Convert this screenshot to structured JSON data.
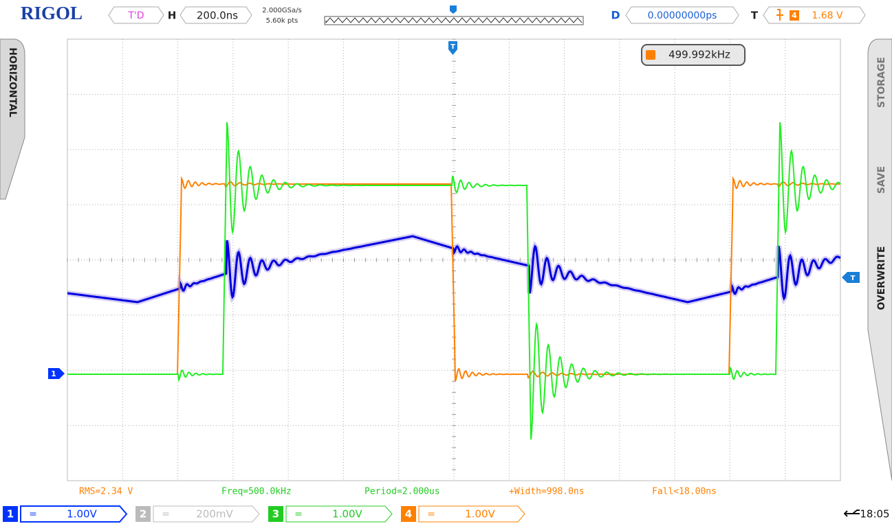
{
  "header": {
    "brand": "RIGOL",
    "trigger_status": "T'D",
    "horizontal_label": "H",
    "timebase": "200.0ns",
    "sample_rate": "2.000GSa/s",
    "memory_depth": "5.60k pts",
    "delay_label": "D",
    "delay": "0.00000000ps",
    "trigger_label": "T",
    "trigger_source": "4",
    "trigger_level": "1.68 V"
  },
  "screen": {
    "frequency_counter": "499.992kHz",
    "trigger_position_marker": "T",
    "channel_marker": "1",
    "trigger_level_marker": "T"
  },
  "side_menus": {
    "left": "HORIZONTAL",
    "right": [
      "STORAGE",
      "SAVE",
      "OVERWRITE"
    ]
  },
  "measurements": [
    {
      "text": "RMS=2.34 V",
      "color": "#ff8000"
    },
    {
      "text": "Freq=500.0kHz",
      "color": "#22cc22"
    },
    {
      "text": "Period=2.000us",
      "color": "#22cc22"
    },
    {
      "text": "+Width=998.0ns",
      "color": "#ff8000"
    },
    {
      "text": "Fall<18.00ns",
      "color": "#ff8000"
    }
  ],
  "channels": [
    {
      "number": "1",
      "coupling": "=",
      "scale": "1.00V",
      "color": "#0033ff"
    },
    {
      "number": "2",
      "coupling": "=",
      "scale": "200mV",
      "color": "#bbbbbb"
    },
    {
      "number": "3",
      "coupling": "=",
      "scale": "1.00V",
      "color": "#22cc22"
    },
    {
      "number": "4",
      "coupling": "=",
      "scale": "1.00V",
      "color": "#ff8000"
    }
  ],
  "status": {
    "time": "18:05"
  }
}
